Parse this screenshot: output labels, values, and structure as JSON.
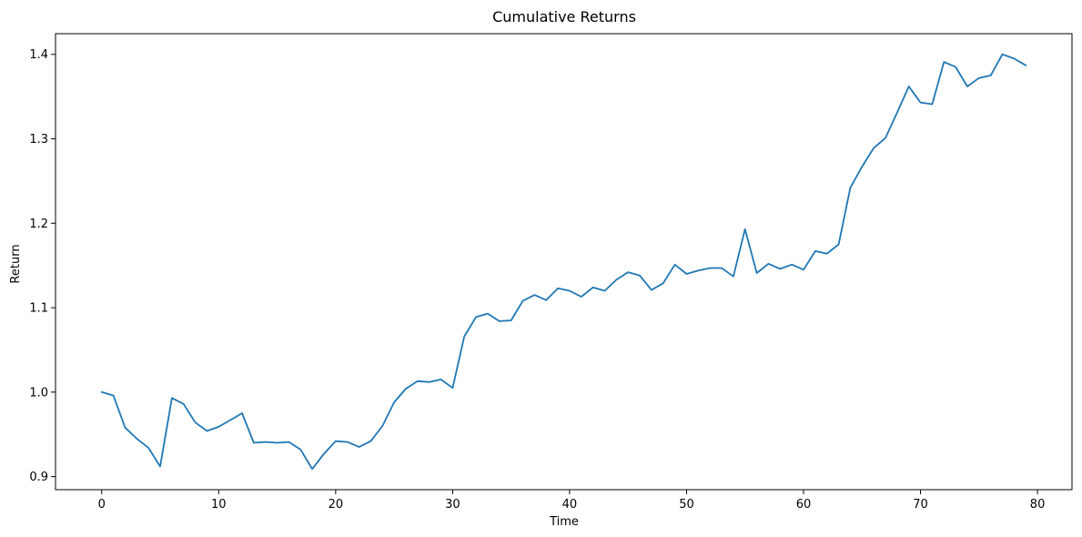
{
  "chart_data": {
    "type": "line",
    "title": "Cumulative Returns",
    "xlabel": "Time",
    "ylabel": "Return",
    "xlim": [
      -3.95,
      82.95
    ],
    "ylim": [
      0.8845,
      1.4245
    ],
    "xticks": [
      0,
      10,
      20,
      30,
      40,
      50,
      60,
      70,
      80
    ],
    "xtick_labels": [
      "0",
      "10",
      "20",
      "30",
      "40",
      "50",
      "60",
      "70",
      "80"
    ],
    "yticks": [
      0.9,
      1.0,
      1.1,
      1.2,
      1.3,
      1.4
    ],
    "ytick_labels": [
      "0.9",
      "1.0",
      "1.1",
      "1.2",
      "1.3",
      "1.4"
    ],
    "grid": false,
    "legend": "none",
    "series": [
      {
        "color": "#1f77b4",
        "x": [
          0,
          1,
          2,
          3,
          4,
          5,
          6,
          7,
          8,
          9,
          10,
          11,
          12,
          13,
          14,
          15,
          16,
          17,
          18,
          19,
          20,
          21,
          22,
          23,
          24,
          25,
          26,
          27,
          28,
          29,
          30,
          31,
          32,
          33,
          34,
          35,
          36,
          37,
          38,
          39,
          40,
          41,
          42,
          43,
          44,
          45,
          46,
          47,
          48,
          49,
          50,
          51,
          52,
          53,
          54,
          55,
          56,
          57,
          58,
          59,
          60,
          61,
          62,
          63,
          64,
          65,
          66,
          67,
          68,
          69,
          70,
          71,
          72,
          73,
          74,
          75,
          76,
          77,
          78,
          79
        ],
        "y": [
          1.0,
          0.996,
          0.958,
          0.945,
          0.934,
          0.912,
          0.993,
          0.986,
          0.964,
          0.954,
          0.959,
          0.967,
          0.975,
          0.94,
          0.941,
          0.94,
          0.941,
          0.932,
          0.909,
          0.927,
          0.942,
          0.941,
          0.935,
          0.942,
          0.96,
          0.988,
          1.004,
          1.013,
          1.012,
          1.015,
          1.005,
          1.066,
          1.089,
          1.093,
          1.084,
          1.085,
          1.108,
          1.115,
          1.109,
          1.123,
          1.12,
          1.113,
          1.124,
          1.12,
          1.133,
          1.142,
          1.138,
          1.121,
          1.129,
          1.151,
          1.14,
          1.144,
          1.147,
          1.147,
          1.137,
          1.193,
          1.141,
          1.152,
          1.146,
          1.151,
          1.145,
          1.167,
          1.164,
          1.175,
          1.242,
          1.267,
          1.289,
          1.301,
          1.331,
          1.362,
          1.343,
          1.341,
          1.391,
          1.385,
          1.362,
          1.372,
          1.375,
          1.4,
          1.395,
          1.387
        ]
      }
    ]
  }
}
